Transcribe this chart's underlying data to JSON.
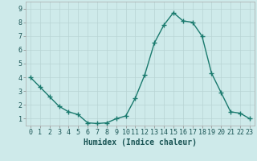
{
  "x": [
    0,
    1,
    2,
    3,
    4,
    5,
    6,
    7,
    8,
    9,
    10,
    11,
    12,
    13,
    14,
    15,
    16,
    17,
    18,
    19,
    20,
    21,
    22,
    23
  ],
  "y": [
    4.0,
    3.3,
    2.6,
    1.9,
    1.5,
    1.3,
    0.7,
    0.65,
    0.7,
    1.0,
    1.2,
    2.5,
    4.2,
    6.5,
    7.8,
    8.7,
    8.1,
    8.0,
    7.0,
    4.3,
    2.9,
    1.5,
    1.4,
    1.0
  ],
  "xlabel": "Humidex (Indice chaleur)",
  "xlim_min": -0.5,
  "xlim_max": 23.5,
  "ylim_min": 0.5,
  "ylim_max": 9.5,
  "yticks": [
    1,
    2,
    3,
    4,
    5,
    6,
    7,
    8,
    9
  ],
  "xticks": [
    0,
    1,
    2,
    3,
    4,
    5,
    6,
    7,
    8,
    9,
    10,
    11,
    12,
    13,
    14,
    15,
    16,
    17,
    18,
    19,
    20,
    21,
    22,
    23
  ],
  "xtick_labels": [
    "0",
    "1",
    "2",
    "3",
    "4",
    "5",
    "6",
    "7",
    "8",
    "9",
    "10",
    "11",
    "12",
    "13",
    "14",
    "15",
    "16",
    "17",
    "18",
    "19",
    "20",
    "21",
    "22",
    "23"
  ],
  "line_color": "#1a7a6e",
  "marker": "+",
  "marker_size": 4,
  "marker_linewidth": 1.0,
  "line_width": 1.0,
  "bg_color": "#ceeaea",
  "grid_color": "#b8d4d4",
  "xlabel_fontsize": 7,
  "tick_fontsize": 6,
  "ylabel_fontsize": 7
}
